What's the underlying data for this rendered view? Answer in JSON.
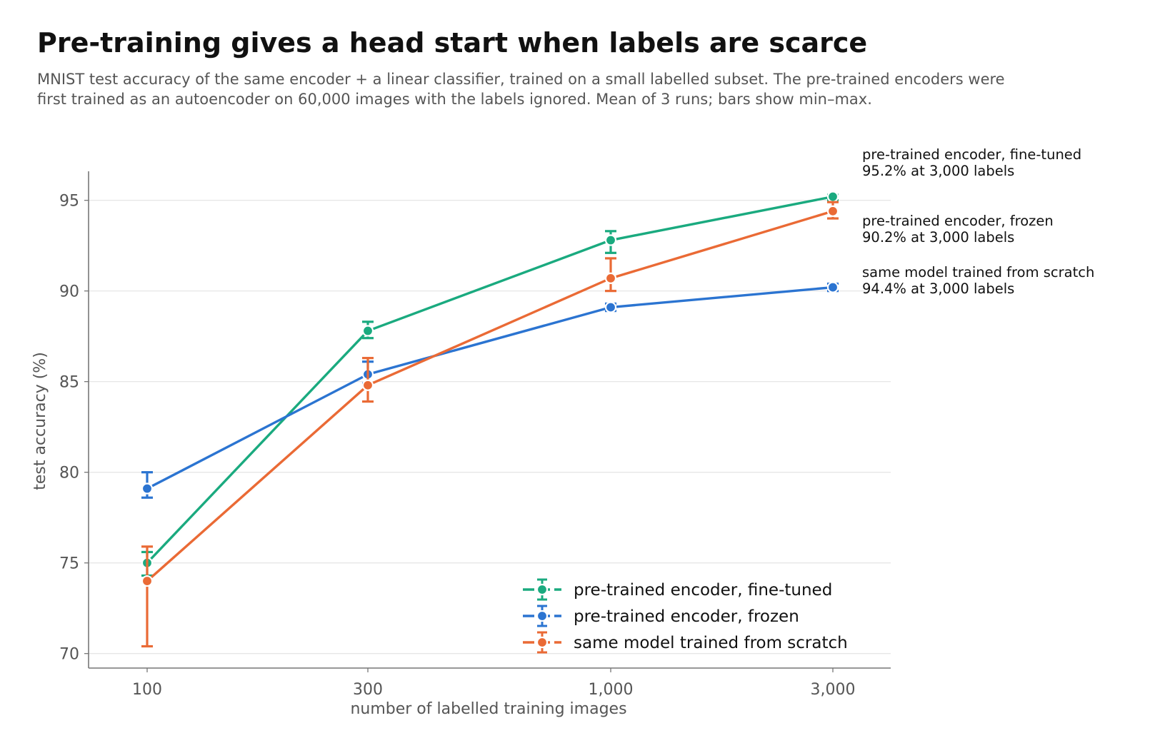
{
  "header": {
    "title": "Pre-training gives a head start when labels are scarce",
    "subtitle_line1": "MNIST test accuracy of the same encoder + a linear classifier, trained on a small labelled subset. The pre-trained encoders were",
    "subtitle_line2": "first trained as an autoencoder on 60,000 images with the labels ignored. Mean of 3 runs; bars show min–max."
  },
  "chart_data": {
    "type": "line",
    "title": "Pre-training gives a head start when labels are scarce",
    "xlabel": "number of labelled training images",
    "ylabel": "test accuracy (%)",
    "x": [
      100,
      300,
      1000,
      3000
    ],
    "x_tick_labels": [
      "100",
      "300",
      "1,000",
      "3,000"
    ],
    "x_scale": "log",
    "ylim": [
      69.2,
      96.6
    ],
    "y_ticks": [
      70,
      75,
      80,
      85,
      90,
      95
    ],
    "y_grid": true,
    "legend_position": "bottom-right",
    "series": [
      {
        "name": "pre-trained encoder, fine-tuned",
        "color": "#1aaa7f",
        "values": [
          75.0,
          87.8,
          92.8,
          95.2
        ],
        "min": [
          74.3,
          87.4,
          92.1,
          95.0
        ],
        "max": [
          75.6,
          88.3,
          93.3,
          95.3
        ],
        "end_label_line1": "pre-trained encoder, fine-tuned",
        "end_label_line2": "95.2% at 3,000 labels"
      },
      {
        "name": "pre-trained encoder, frozen",
        "color": "#2b74d1",
        "values": [
          79.1,
          85.4,
          89.1,
          90.2
        ],
        "min": [
          78.6,
          84.9,
          88.9,
          90.0
        ],
        "max": [
          80.0,
          86.1,
          89.3,
          90.4
        ],
        "end_label_line1": "pre-trained encoder, frozen",
        "end_label_line2": "90.2% at 3,000 labels"
      },
      {
        "name": "same model trained from scratch",
        "color": "#ea6a35",
        "values": [
          74.0,
          84.8,
          90.7,
          94.4
        ],
        "min": [
          70.4,
          83.9,
          90.0,
          94.0
        ],
        "max": [
          75.9,
          86.3,
          91.8,
          94.9
        ],
        "end_label_line1": "same model trained from scratch",
        "end_label_line2": "94.4% at 3,000 labels"
      }
    ]
  }
}
